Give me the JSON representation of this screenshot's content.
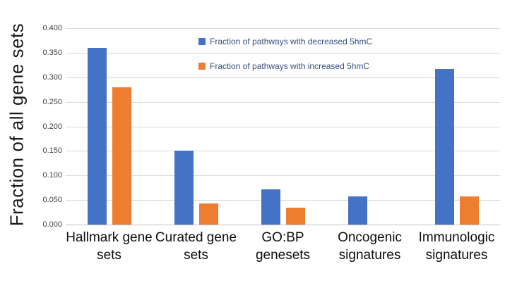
{
  "chart_data": {
    "type": "bar",
    "title": "",
    "ylabel": "Fraction of all gene sets",
    "xlabel": "",
    "categories": [
      "Hallmark gene sets",
      "Curated gene sets",
      "GO:BP genesets",
      "Oncogenic signatures",
      "Immunologic signatures"
    ],
    "series": [
      {
        "name": "Fraction of pathways with decreased 5hmC",
        "color": "#4472C4",
        "values": [
          0.36,
          0.15,
          0.072,
          0.058,
          0.317
        ]
      },
      {
        "name": "Fraction of pathways with increased 5hmC",
        "color": "#ED7D31",
        "values": [
          0.28,
          0.043,
          0.035,
          0.0,
          0.058
        ]
      }
    ],
    "ylim": [
      0,
      0.4
    ],
    "ytick_step": 0.05,
    "ytick_labels": [
      "0.000",
      "0.050",
      "0.100",
      "0.150",
      "0.200",
      "0.250",
      "0.300",
      "0.350",
      "0.400"
    ],
    "grid": true,
    "legend_position": "top-center-inside",
    "gridline_color": "#d9d9d9",
    "axis_text_color": "#404040",
    "category_text_color": "#0d0d0d",
    "legend_text_color": "#35507b"
  }
}
